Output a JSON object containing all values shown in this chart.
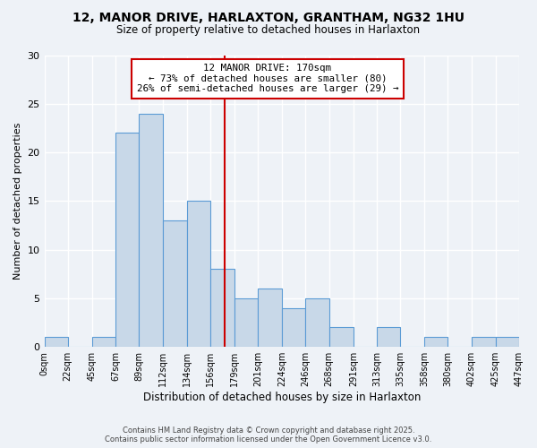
{
  "title": "12, MANOR DRIVE, HARLAXTON, GRANTHAM, NG32 1HU",
  "subtitle": "Size of property relative to detached houses in Harlaxton",
  "xlabel": "Distribution of detached houses by size in Harlaxton",
  "ylabel": "Number of detached properties",
  "bar_color": "#c8d8e8",
  "bar_edge_color": "#5b9bd5",
  "bin_edges": [
    0,
    22,
    45,
    67,
    89,
    112,
    134,
    156,
    179,
    201,
    224,
    246,
    268,
    291,
    313,
    335,
    358,
    380,
    402,
    425,
    447
  ],
  "bin_labels": [
    "0sqm",
    "22sqm",
    "45sqm",
    "67sqm",
    "89sqm",
    "112sqm",
    "134sqm",
    "156sqm",
    "179sqm",
    "201sqm",
    "224sqm",
    "246sqm",
    "268sqm",
    "291sqm",
    "313sqm",
    "335sqm",
    "358sqm",
    "380sqm",
    "402sqm",
    "425sqm",
    "447sqm"
  ],
  "counts": [
    1,
    0,
    1,
    22,
    24,
    13,
    15,
    8,
    5,
    6,
    4,
    5,
    2,
    0,
    2,
    0,
    1,
    0,
    1,
    1
  ],
  "property_size": 170,
  "property_line_color": "#cc0000",
  "annotation_title": "12 MANOR DRIVE: 170sqm",
  "annotation_line1": "← 73% of detached houses are smaller (80)",
  "annotation_line2": "26% of semi-detached houses are larger (29) →",
  "annotation_box_color": "#ffffff",
  "annotation_box_edge_color": "#cc0000",
  "ylim": [
    0,
    30
  ],
  "yticks": [
    0,
    5,
    10,
    15,
    20,
    25,
    30
  ],
  "background_color": "#eef2f7",
  "plot_bg_color": "#eef2f7",
  "footer1": "Contains HM Land Registry data © Crown copyright and database right 2025.",
  "footer2": "Contains public sector information licensed under the Open Government Licence v3.0."
}
